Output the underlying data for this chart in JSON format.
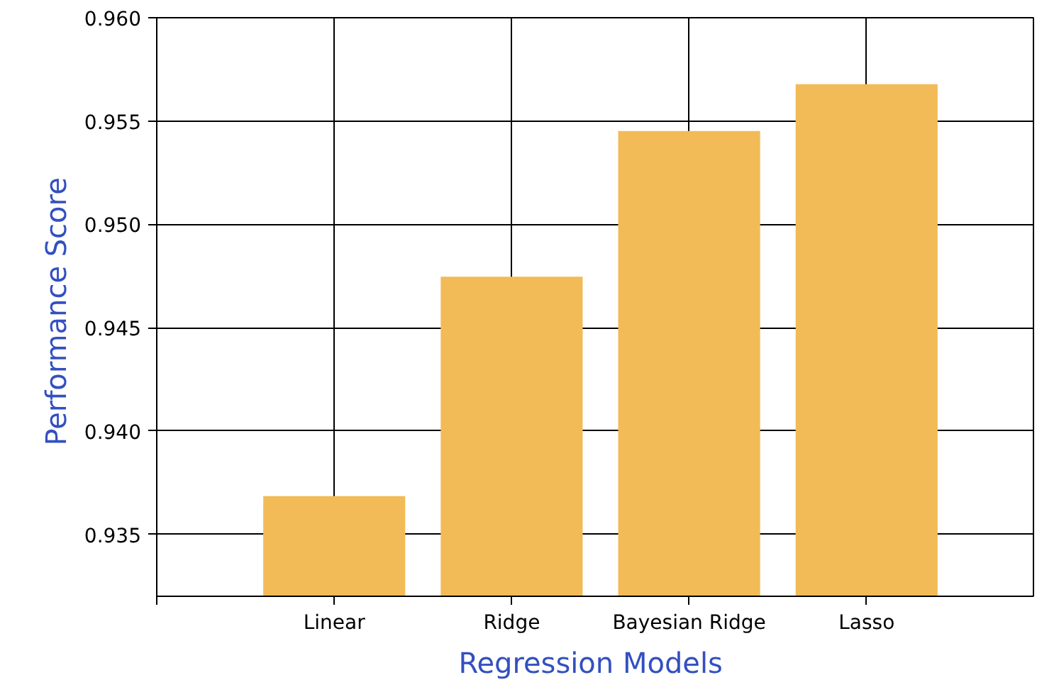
{
  "chart_data": {
    "type": "bar",
    "xlabel": "Regression  Models",
    "ylabel": "Performance  Score",
    "categories": [
      "Linear",
      "Ridge",
      "Bayesian Ridge",
      "Lasso"
    ],
    "values": [
      0.93685,
      0.94747,
      0.95452,
      0.95678
    ],
    "color": "#f2bb57",
    "ylim": [
      0.932,
      0.96
    ],
    "yticks": [
      {
        "value": 0.935,
        "label": "0.935"
      },
      {
        "value": 0.94,
        "label": "0.940"
      },
      {
        "value": 0.945,
        "label": "0.945"
      },
      {
        "value": 0.95,
        "label": "0.950"
      },
      {
        "value": 0.955,
        "label": "0.955"
      },
      {
        "value": 0.96,
        "label": "0.960"
      }
    ],
    "grid": true
  }
}
